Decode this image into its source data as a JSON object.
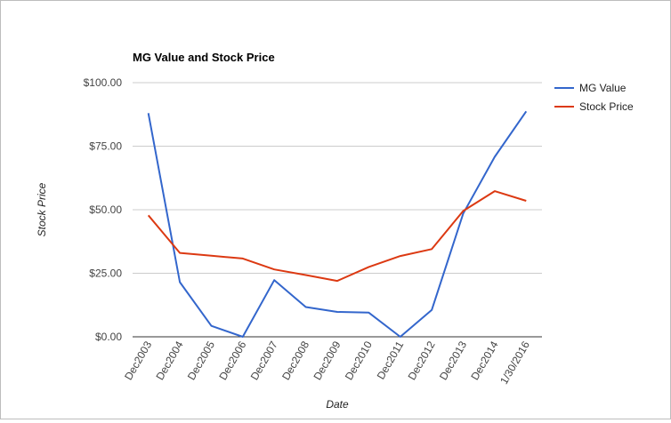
{
  "chart_data": {
    "type": "line",
    "title": "MG Value and Stock Price",
    "xlabel": "Date",
    "ylabel": "Stock Price",
    "categories": [
      "Dec2003",
      "Dec2004",
      "Dec2005",
      "Dec2006",
      "Dec2007",
      "Dec2008",
      "Dec2009",
      "Dec2010",
      "Dec2011",
      "Dec2012",
      "Dec2013",
      "Dec2014",
      "1/30/2016"
    ],
    "series": [
      {
        "name": "MG Value",
        "color": "#3366cc",
        "values": [
          88,
          21.5,
          4.3,
          0,
          22.3,
          11.7,
          9.8,
          9.5,
          0,
          10.6,
          48.5,
          70.8,
          88.7
        ]
      },
      {
        "name": "Stock Price",
        "color": "#dc3912",
        "values": [
          47.8,
          33,
          31.9,
          30.8,
          26.5,
          24.3,
          22,
          27.5,
          31.8,
          34.5,
          49.5,
          57.3,
          53.5
        ]
      }
    ],
    "ylim": [
      0,
      100
    ],
    "yticks": [
      0,
      25,
      50,
      75,
      100
    ],
    "ytick_labels": [
      "$0.00",
      "$25.00",
      "$50.00",
      "$75.00",
      "$100.00"
    ],
    "grid": true,
    "legend_position": "right"
  }
}
